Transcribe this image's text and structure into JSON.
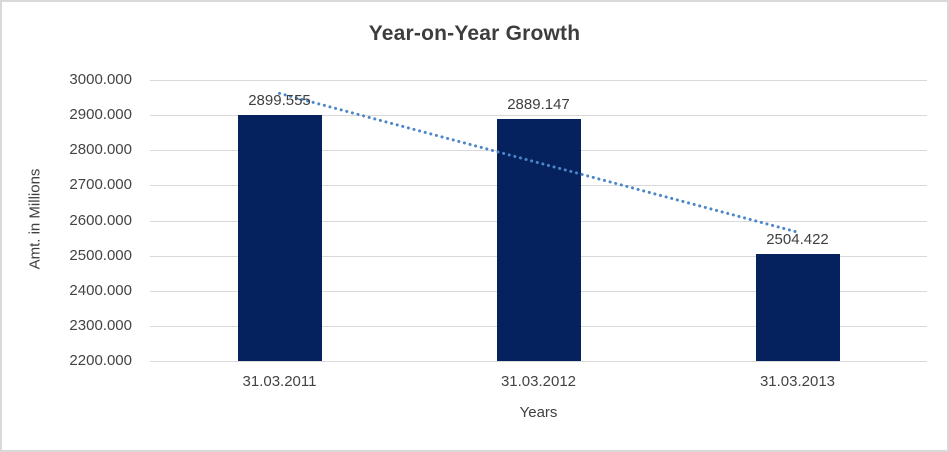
{
  "chart_data": {
    "type": "bar",
    "title": "Year-on-Year Growth",
    "categories": [
      "31.03.2011",
      "31.03.2012",
      "31.03.2013"
    ],
    "values": [
      2899.555,
      2889.147,
      2504.422
    ],
    "value_labels": [
      "2899.555",
      "2889.147",
      "2504.422"
    ],
    "xlabel": "Years",
    "ylabel": "Amt. in Millions",
    "ylim": [
      2200,
      3000
    ],
    "ytick_step": 100,
    "ytick_labels": [
      "3000.000",
      "2900.000",
      "2800.000",
      "2700.000",
      "2600.000",
      "2500.000",
      "2400.000",
      "2300.000",
      "2200.000"
    ],
    "grid": true,
    "legend": false,
    "trendline": {
      "type": "linear",
      "style": "dotted"
    }
  },
  "colors": {
    "bar": "#05215e",
    "trend": "#4a86c8",
    "grid": "#d9d9d9",
    "text": "#404040",
    "title": "#3d3d3d",
    "frame_border": "#d9d9d9",
    "background": "#ffffff"
  }
}
